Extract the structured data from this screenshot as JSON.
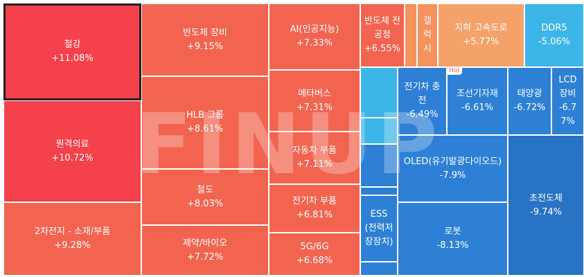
{
  "watermark": "FINUP",
  "badge": "Hot",
  "tiles": [
    {
      "name": "철강",
      "change": "+11.08%"
    },
    {
      "name": "원격의료",
      "change": "+10.72%"
    },
    {
      "name": "2차전지 - 소재/부품",
      "change": "+9.28%"
    },
    {
      "name": "반도체 장비",
      "change": "+9.15%"
    },
    {
      "name": "HLB 그룹",
      "change": "+8.61%"
    },
    {
      "name": "철도",
      "change": "+8.03%"
    },
    {
      "name": "제약/바이오",
      "change": "+7.72%"
    },
    {
      "name": "AI(인공지능)",
      "change": "+7.33%"
    },
    {
      "name": "메타버스",
      "change": "+7.31%"
    },
    {
      "name": "자동차 부품",
      "change": "+7.11%"
    },
    {
      "name": "전기차 부품",
      "change": "+6.81%"
    },
    {
      "name": "5G/6G",
      "change": "+6.68%"
    },
    {
      "name": "반도체 전공정",
      "change": "+6.55%"
    },
    {
      "name": "갤럭시"
    },
    {
      "name": "지하 고속도로",
      "change": "+5.77%"
    },
    {
      "name": "DDR5",
      "change": "-5.06%"
    },
    {
      "name": "전기차 충전",
      "change": "-6.49%"
    },
    {
      "name": "조선기자재",
      "change": "-6.61%"
    },
    {
      "name": "태양광",
      "change": "-6.72%"
    },
    {
      "name": "LCD 장비",
      "change": "-6.77%"
    },
    {
      "name": "OLED(유기발광다이오드)",
      "change": "-7.9%"
    },
    {
      "name": "로봇",
      "change": "-8.13%"
    },
    {
      "name": "초전도체",
      "change": "-9.74%"
    },
    {
      "name": "ESS (전력저장장치)"
    }
  ]
}
